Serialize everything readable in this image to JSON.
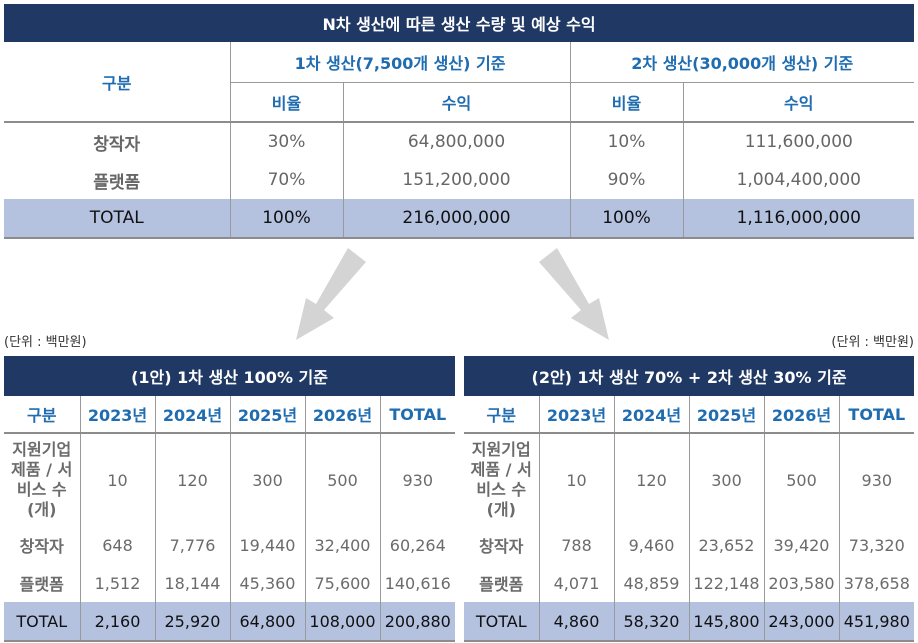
{
  "top_table": {
    "title": "N차 생산에 따른 생산 수량 및 예상 수익",
    "category_header": "구분",
    "phase1_header": "1차 생산(7,500개 생산) 기준",
    "phase2_header": "2차 생산(30,000개 생산) 기준",
    "ratio_header": "비율",
    "revenue_header": "수익",
    "rows": [
      {
        "label": "창작자",
        "p1_ratio": "30%",
        "p1_revenue": "64,800,000",
        "p2_ratio": "10%",
        "p2_revenue": "111,600,000"
      },
      {
        "label": "플랫폼",
        "p1_ratio": "70%",
        "p1_revenue": "151,200,000",
        "p2_ratio": "90%",
        "p2_revenue": "1,004,400,000"
      },
      {
        "label": "TOTAL",
        "p1_ratio": "100%",
        "p1_revenue": "216,000,000",
        "p2_ratio": "100%",
        "p2_revenue": "1,116,000,000"
      }
    ]
  },
  "unit_left": "(단위 : 백만원)",
  "unit_right": "(단위 : 백만원)",
  "plan1": {
    "title": "(1안) 1차 생산 100% 기준",
    "headers": [
      "구분",
      "2023년",
      "2024년",
      "2025년",
      "2026년",
      "TOTAL"
    ],
    "rows": [
      {
        "label": "지원기업 제품 / 서비스 수(개)",
        "values": [
          "10",
          "120",
          "300",
          "500",
          "930"
        ]
      },
      {
        "label": "창작자",
        "values": [
          "648",
          "7,776",
          "19,440",
          "32,400",
          "60,264"
        ]
      },
      {
        "label": "플랫폼",
        "values": [
          "1,512",
          "18,144",
          "45,360",
          "75,600",
          "140,616"
        ]
      },
      {
        "label": "TOTAL",
        "values": [
          "2,160",
          "25,920",
          "64,800",
          "108,000",
          "200,880"
        ]
      }
    ]
  },
  "plan2": {
    "title": "(2안) 1차 생산 70% + 2차 생산 30% 기준",
    "headers": [
      "구분",
      "2023년",
      "2024년",
      "2025년",
      "2026년",
      "TOTAL"
    ],
    "rows": [
      {
        "label": "지원기업 제품 / 서비스 수(개)",
        "values": [
          "10",
          "120",
          "300",
          "500",
          "930"
        ]
      },
      {
        "label": "창작자",
        "values": [
          "788",
          "9,460",
          "23,652",
          "39,420",
          "73,320"
        ]
      },
      {
        "label": "플랫폼",
        "values": [
          "4,071",
          "48,859",
          "122,148",
          "203,580",
          "378,658"
        ]
      },
      {
        "label": "TOTAL",
        "values": [
          "4,860",
          "58,320",
          "145,800",
          "243,000",
          "451,980"
        ]
      }
    ]
  },
  "colors": {
    "header_navy": "#203864",
    "header_text_blue": "#1f6cb0",
    "total_row": "#b4c2e0",
    "arrow_gray": "#d4d4d4"
  }
}
